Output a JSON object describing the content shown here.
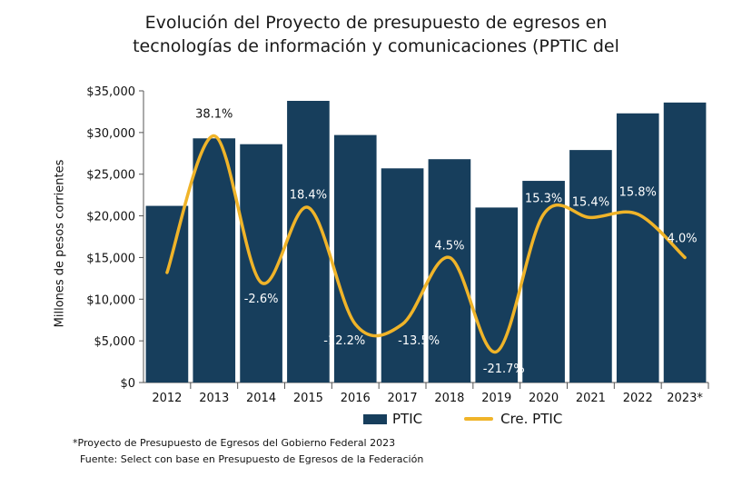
{
  "title_line1": "Evolución del Proyecto de presupuesto de egresos en",
  "title_line2": "tecnologías de información y comunicaciones (PPTIC del",
  "ylabel": "Millones de pesos corrientes",
  "legend": {
    "bar_label": "PTIC",
    "line_label": "Cre. PTIC"
  },
  "footnote": "*Proyecto de Presupuesto de Egresos del Gobierno Federal 2023",
  "source": "Fuente: Select con base en Presupuesto de Egresos de la Federación",
  "colors": {
    "bar": "#173e5c",
    "line": "#f0b429",
    "label_light": "#ffffff",
    "label_dark": "#111111"
  },
  "chart_data": {
    "type": "bar",
    "categories": [
      "2012",
      "2013",
      "2014",
      "2015",
      "2016",
      "2017",
      "2018",
      "2019",
      "2020",
      "2021",
      "2022",
      "2023*"
    ],
    "ylim": [
      0,
      35000
    ],
    "yticks": [
      0,
      5000,
      10000,
      15000,
      20000,
      25000,
      30000,
      35000
    ],
    "ytick_labels": [
      "$0",
      "$5,000",
      "$10,000",
      "$15,000",
      "$20,000",
      "$25,000",
      "$30,000",
      "$35,000"
    ],
    "series": [
      {
        "name": "PTIC",
        "type": "bar",
        "values": [
          21200,
          29300,
          28600,
          33800,
          29700,
          25700,
          26800,
          21000,
          24200,
          27900,
          32300,
          33600
        ]
      },
      {
        "name": "Cre. PTIC",
        "type": "line",
        "values": [
          null,
          38.1,
          -2.6,
          18.4,
          -12.2,
          -13.5,
          4.5,
          -21.7,
          15.3,
          15.4,
          15.8,
          4.0
        ],
        "labels": [
          "",
          "38.1%",
          "-2.6%",
          "18.4%",
          "-12.2%",
          "-13.5%",
          "4.5%",
          "-21.7%",
          "15.3%",
          "15.4%",
          "15.8%",
          "4.0%"
        ],
        "curve_y_values": [
          13200,
          29600,
          12000,
          21000,
          7000,
          7000,
          15000,
          3700,
          20200,
          19800,
          20200,
          15000
        ]
      }
    ],
    "grid": false,
    "legend_position": "bottom"
  }
}
